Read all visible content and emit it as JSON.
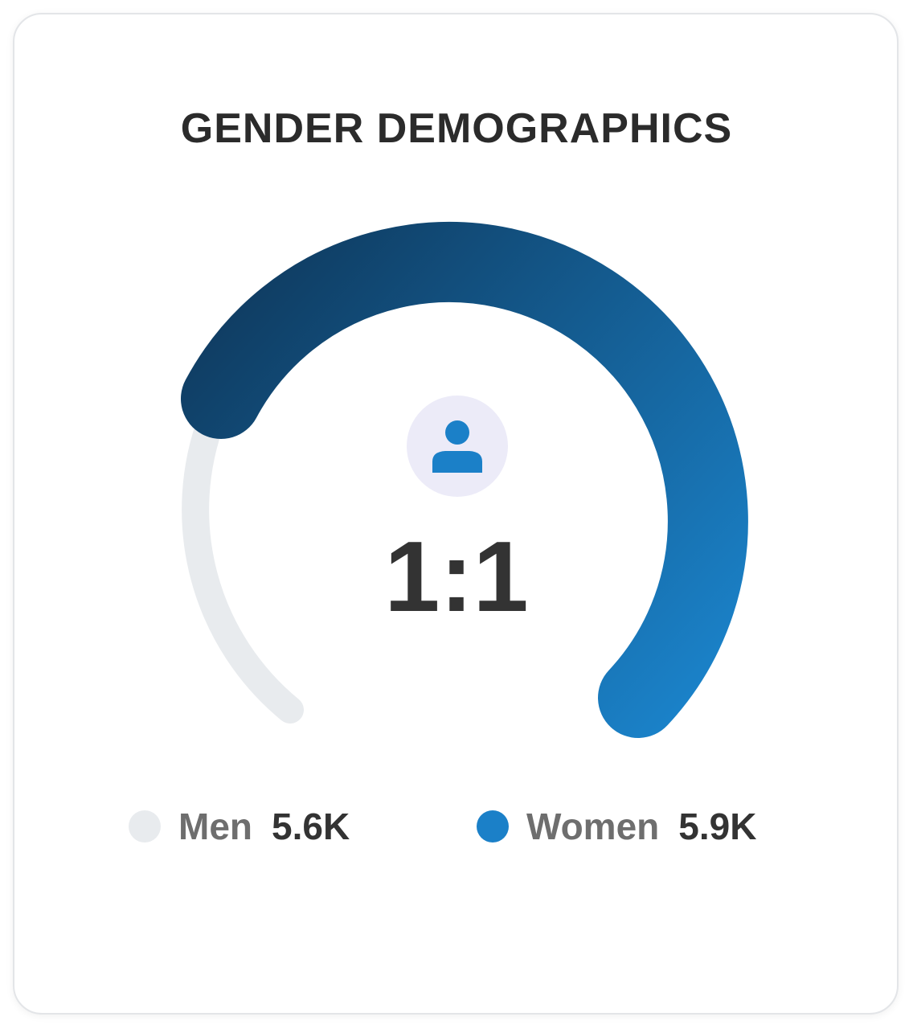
{
  "title": "GENDER DEMOGRAPHICS",
  "ratio": "1:1",
  "center_icon": "user-icon",
  "legend": [
    {
      "name": "Men",
      "value": "5.6K",
      "color": "#e8ebee"
    },
    {
      "name": "Women",
      "value": "5.9K",
      "color": "#1b80c8"
    }
  ],
  "colors": {
    "track": "#e8ebee",
    "arc_start": "#0e3557",
    "arc_end": "#1b86cf",
    "icon": "#1b80c8",
    "icon_bg": "#ecebf8"
  }
}
